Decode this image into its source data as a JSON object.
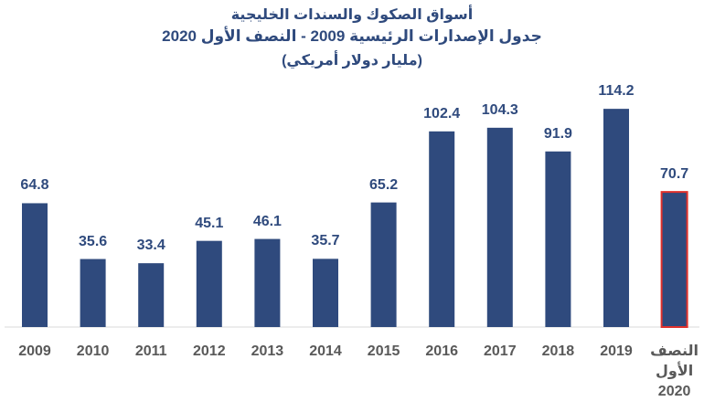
{
  "chart_data": {
    "type": "bar",
    "title": "أسواق الصكوك والسندات الخليجية",
    "subtitle": "جدول الإصدارات الرئيسية 2009 - النصف الأول 2020",
    "unit_label": "(مليار دولار أمريكي)",
    "categories": [
      "2009",
      "2010",
      "2011",
      "2012",
      "2013",
      "2014",
      "2015",
      "2016",
      "2017",
      "2018",
      "2019",
      "النصف الأول 2020"
    ],
    "values": [
      64.8,
      35.6,
      33.4,
      45.1,
      46.1,
      35.7,
      65.2,
      102.4,
      104.3,
      91.9,
      114.2,
      70.7
    ],
    "color": "#2f4a7d",
    "edge_colors": [
      null,
      null,
      null,
      null,
      null,
      null,
      null,
      null,
      null,
      null,
      null,
      "#e0312c"
    ],
    "ylim": [
      0,
      120
    ]
  }
}
